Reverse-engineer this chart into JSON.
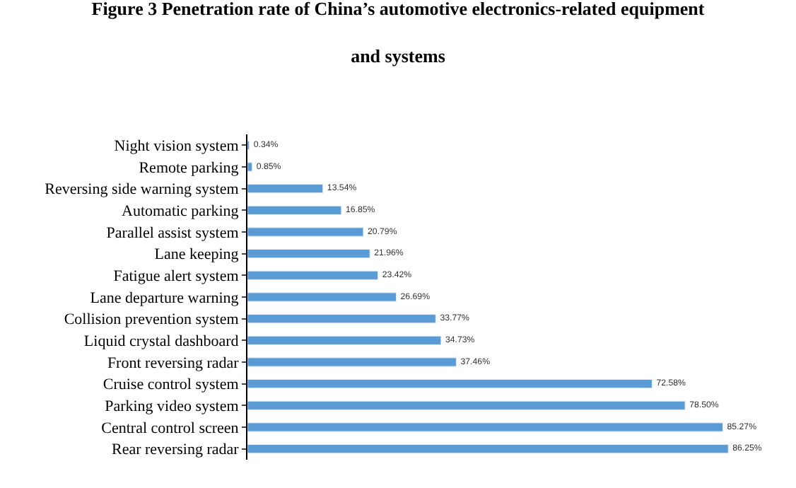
{
  "chart_data": {
    "type": "bar",
    "orientation": "horizontal",
    "title": "Figure 3 Penetration rate of China’s automotive electronics-related equipment and systems",
    "categories": [
      "Night vision system",
      "Remote parking",
      "Reversing side warning system",
      "Automatic parking",
      "Parallel assist system",
      "Lane keeping",
      "Fatigue alert system",
      "Lane departure warning",
      "Collision prevention system",
      "Liquid crystal dashboard",
      "Front reversing radar",
      "Cruise control system",
      "Parking video system",
      "Central control screen",
      "Rear reversing radar"
    ],
    "values": [
      0.34,
      0.85,
      13.54,
      16.85,
      20.79,
      21.96,
      23.42,
      26.69,
      33.77,
      34.73,
      37.46,
      72.58,
      78.5,
      85.27,
      86.25
    ],
    "value_labels": [
      "0.34%",
      "0.85%",
      "13.54%",
      "16.85%",
      "20.79%",
      "21.96%",
      "23.42%",
      "26.69%",
      "33.77%",
      "34.73%",
      "37.46%",
      "72.58%",
      "78.50%",
      "85.27%",
      "86.25%"
    ],
    "color": "#5b9bd5",
    "tick_labels": "y",
    "legend": false
  }
}
